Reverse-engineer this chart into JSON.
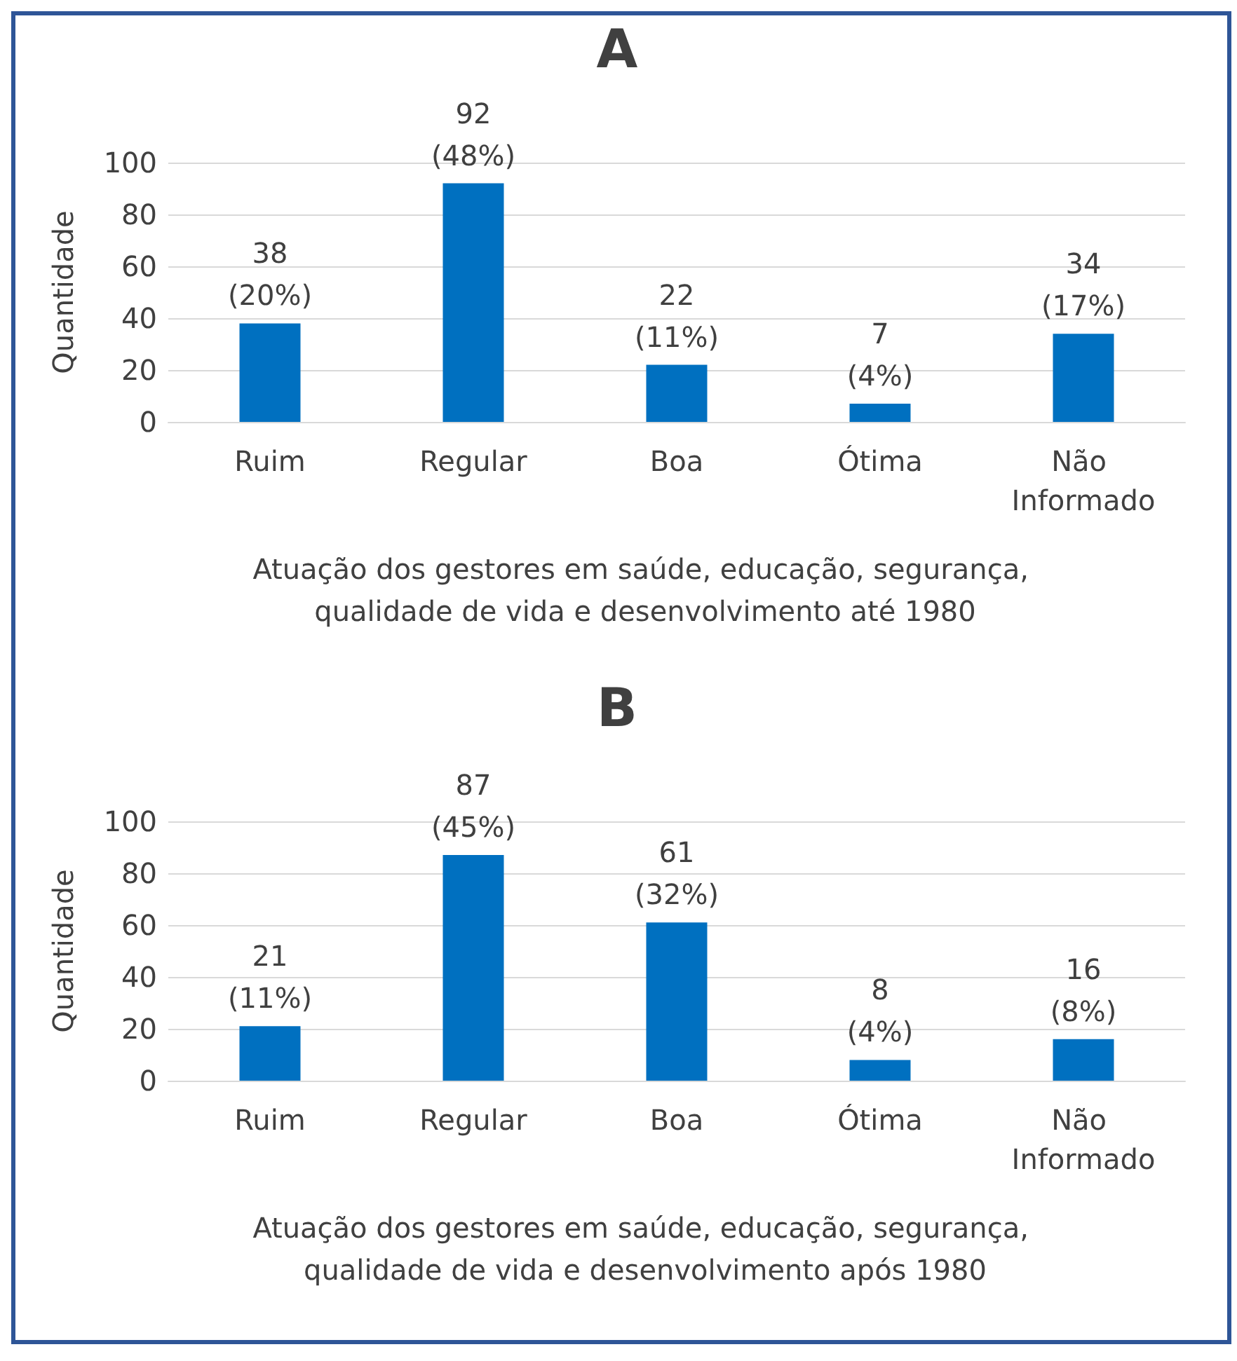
{
  "chart_data": [
    {
      "type": "bar",
      "title": "A",
      "ylabel": "Quantidade",
      "xlabel": "Atuação dos gestores em saúde, educação, segurança, qualidade de vida e desenvolvimento até 1980",
      "categories": [
        "Ruim",
        "Regular",
        "Boa",
        "Ótima",
        "Não Informado"
      ],
      "values": [
        38,
        92,
        22,
        7,
        34
      ],
      "value_labels": [
        "38\n(20%)",
        "92\n(48%)",
        "22\n(11%)",
        "7\n(4%)",
        "34\n(17%)"
      ],
      "color": "#0070c0",
      "ylim": [
        0,
        100
      ],
      "yticks": [
        0,
        20,
        40,
        60,
        80,
        100
      ],
      "grid": "y"
    },
    {
      "type": "bar",
      "title": "B",
      "ylabel": "Quantidade",
      "xlabel": "Atuação dos gestores em saúde, educação, segurança, qualidade de vida e desenvolvimento após 1980",
      "categories": [
        "Ruim",
        "Regular",
        "Boa",
        "Ótima",
        "Não Informado"
      ],
      "values": [
        21,
        87,
        61,
        8,
        16
      ],
      "value_labels": [
        "21\n(11%)",
        "87\n(45%)",
        "61\n(32%)",
        "8\n(4%)",
        "16\n(8%)"
      ],
      "color": "#0070c0",
      "ylim": [
        0,
        100
      ],
      "yticks": [
        0,
        20,
        40,
        60,
        80,
        100
      ],
      "grid": "y"
    }
  ]
}
